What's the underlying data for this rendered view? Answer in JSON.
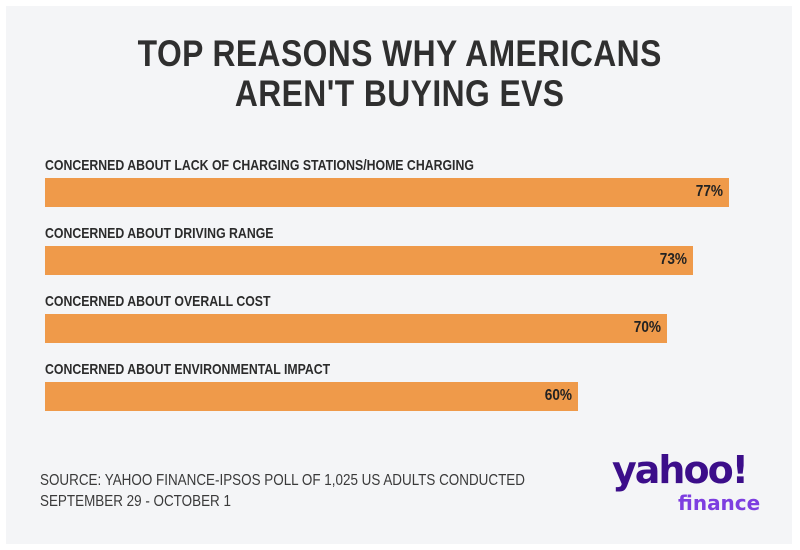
{
  "chart_data": {
    "type": "bar",
    "orientation": "horizontal",
    "title": [
      "TOP REASONS WHY AMERICANS",
      "AREN'T BUYING EVS"
    ],
    "categories": [
      "CONCERNED ABOUT LACK OF CHARGING STATIONS/HOME CHARGING",
      "CONCERNED ABOUT DRIVING RANGE",
      "CONCERNED ABOUT OVERALL COST",
      "CONCERNED ABOUT ENVIRONMENTAL IMPACT"
    ],
    "values": [
      77,
      73,
      70,
      60
    ],
    "value_labels": [
      "77%",
      "73%",
      "70%",
      "60%"
    ],
    "xlim": [
      0,
      100
    ],
    "grid": false,
    "bar_color": "#ef9a4a"
  },
  "source": [
    "SOURCE: YAHOO FINANCE-IPSOS POLL OF 1,025 US ADULTS CONDUCTED",
    "SEPTEMBER 29 - OCTOBER 1"
  ],
  "logo": {
    "main": "yahoo!",
    "sub": "finance"
  }
}
